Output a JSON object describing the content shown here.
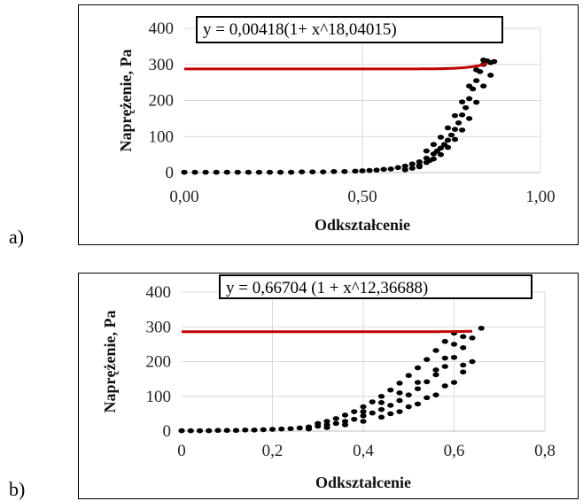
{
  "panels": [
    {
      "label": "a)"
    },
    {
      "label": "b)"
    }
  ],
  "colors": {
    "points": "#000000",
    "fit": "#c00000",
    "grid": "#d9d9d9"
  },
  "chart_data": [
    {
      "type": "scatter",
      "title": "",
      "equation": "y = 0,00418(1+ x^18,04015)",
      "xlabel": "Odkształcenie",
      "ylabel": "Naprężenie, Pa",
      "xlim": [
        0,
        1
      ],
      "ylim": [
        0,
        400
      ],
      "xticks": [
        "0,00",
        "0,50",
        "1,00"
      ],
      "yticks": [
        "0",
        "100",
        "200",
        "300",
        "400"
      ],
      "grid": true,
      "fit": {
        "a": 0.00418,
        "n": 18.04015
      },
      "points": [
        [
          0.0,
          1
        ],
        [
          0.03,
          1
        ],
        [
          0.06,
          1
        ],
        [
          0.09,
          1
        ],
        [
          0.12,
          1
        ],
        [
          0.15,
          1
        ],
        [
          0.18,
          1
        ],
        [
          0.21,
          1
        ],
        [
          0.24,
          1
        ],
        [
          0.27,
          1
        ],
        [
          0.3,
          1
        ],
        [
          0.33,
          2
        ],
        [
          0.36,
          2
        ],
        [
          0.39,
          2
        ],
        [
          0.42,
          3
        ],
        [
          0.45,
          3
        ],
        [
          0.48,
          4
        ],
        [
          0.5,
          5
        ],
        [
          0.52,
          6
        ],
        [
          0.54,
          7
        ],
        [
          0.56,
          9
        ],
        [
          0.58,
          10
        ],
        [
          0.6,
          14
        ],
        [
          0.62,
          18
        ],
        [
          0.64,
          24
        ],
        [
          0.66,
          30
        ],
        [
          0.68,
          40
        ],
        [
          0.7,
          52
        ],
        [
          0.71,
          60
        ],
        [
          0.72,
          68
        ],
        [
          0.73,
          78
        ],
        [
          0.74,
          90
        ],
        [
          0.75,
          104
        ],
        [
          0.76,
          120
        ],
        [
          0.77,
          138
        ],
        [
          0.78,
          160
        ],
        [
          0.79,
          180
        ],
        [
          0.8,
          205
        ],
        [
          0.81,
          232
        ],
        [
          0.82,
          255
        ],
        [
          0.83,
          280
        ],
        [
          0.84,
          300
        ],
        [
          0.85,
          310
        ],
        [
          0.86,
          305
        ],
        [
          0.87,
          308
        ],
        [
          0.66,
          20
        ],
        [
          0.68,
          28
        ],
        [
          0.7,
          38
        ],
        [
          0.72,
          50
        ],
        [
          0.74,
          70
        ],
        [
          0.76,
          92
        ],
        [
          0.78,
          118
        ],
        [
          0.8,
          150
        ],
        [
          0.82,
          195
        ],
        [
          0.84,
          240
        ],
        [
          0.86,
          270
        ],
        [
          0.68,
          60
        ],
        [
          0.7,
          78
        ],
        [
          0.72,
          98
        ],
        [
          0.74,
          124
        ],
        [
          0.76,
          158
        ],
        [
          0.78,
          196
        ],
        [
          0.8,
          240
        ],
        [
          0.82,
          285
        ],
        [
          0.84,
          312
        ],
        [
          0.62,
          8
        ],
        [
          0.64,
          12
        ],
        [
          0.66,
          16
        ],
        [
          0.69,
          34
        ]
      ]
    },
    {
      "type": "scatter",
      "title": "",
      "equation": "y = 0,66704 (1 + x^12,36688)",
      "xlabel": "Odkształcenie",
      "ylabel": "Naprężenie, Pa",
      "xlim": [
        0,
        0.8
      ],
      "ylim": [
        0,
        400
      ],
      "xticks": [
        "0",
        "0,2",
        "0,4",
        "0,6",
        "0,8"
      ],
      "yticks": [
        "0",
        "100",
        "200",
        "300",
        "400"
      ],
      "grid": true,
      "fit": {
        "a": 0.66704,
        "n": 12.36688
      },
      "points": [
        [
          0.0,
          1
        ],
        [
          0.02,
          1
        ],
        [
          0.04,
          1
        ],
        [
          0.06,
          1
        ],
        [
          0.08,
          2
        ],
        [
          0.1,
          2
        ],
        [
          0.12,
          2
        ],
        [
          0.14,
          3
        ],
        [
          0.16,
          3
        ],
        [
          0.18,
          4
        ],
        [
          0.2,
          5
        ],
        [
          0.22,
          6
        ],
        [
          0.24,
          7
        ],
        [
          0.26,
          9
        ],
        [
          0.28,
          12
        ],
        [
          0.3,
          14
        ],
        [
          0.32,
          18
        ],
        [
          0.34,
          22
        ],
        [
          0.36,
          28
        ],
        [
          0.38,
          34
        ],
        [
          0.4,
          44
        ],
        [
          0.42,
          52
        ],
        [
          0.44,
          62
        ],
        [
          0.46,
          74
        ],
        [
          0.48,
          88
        ],
        [
          0.5,
          104
        ],
        [
          0.52,
          122
        ],
        [
          0.54,
          142
        ],
        [
          0.56,
          162
        ],
        [
          0.58,
          186
        ],
        [
          0.6,
          212
        ],
        [
          0.62,
          240
        ],
        [
          0.64,
          268
        ],
        [
          0.66,
          296
        ],
        [
          0.3,
          22
        ],
        [
          0.32,
          28
        ],
        [
          0.34,
          36
        ],
        [
          0.36,
          46
        ],
        [
          0.38,
          56
        ],
        [
          0.4,
          70
        ],
        [
          0.42,
          84
        ],
        [
          0.44,
          100
        ],
        [
          0.46,
          118
        ],
        [
          0.48,
          138
        ],
        [
          0.5,
          160
        ],
        [
          0.52,
          182
        ],
        [
          0.54,
          206
        ],
        [
          0.56,
          232
        ],
        [
          0.58,
          258
        ],
        [
          0.6,
          282
        ],
        [
          0.28,
          6
        ],
        [
          0.32,
          10
        ],
        [
          0.36,
          18
        ],
        [
          0.4,
          28
        ],
        [
          0.44,
          40
        ],
        [
          0.48,
          56
        ],
        [
          0.52,
          78
        ],
        [
          0.56,
          104
        ],
        [
          0.6,
          140
        ],
        [
          0.62,
          170
        ],
        [
          0.64,
          200
        ],
        [
          0.4,
          56
        ],
        [
          0.44,
          82
        ],
        [
          0.48,
          110
        ],
        [
          0.52,
          140
        ],
        [
          0.56,
          176
        ],
        [
          0.58,
          210
        ],
        [
          0.6,
          250
        ],
        [
          0.62,
          272
        ],
        [
          0.46,
          50
        ],
        [
          0.5,
          70
        ],
        [
          0.54,
          96
        ],
        [
          0.58,
          130
        ],
        [
          0.62,
          190
        ]
      ]
    }
  ]
}
